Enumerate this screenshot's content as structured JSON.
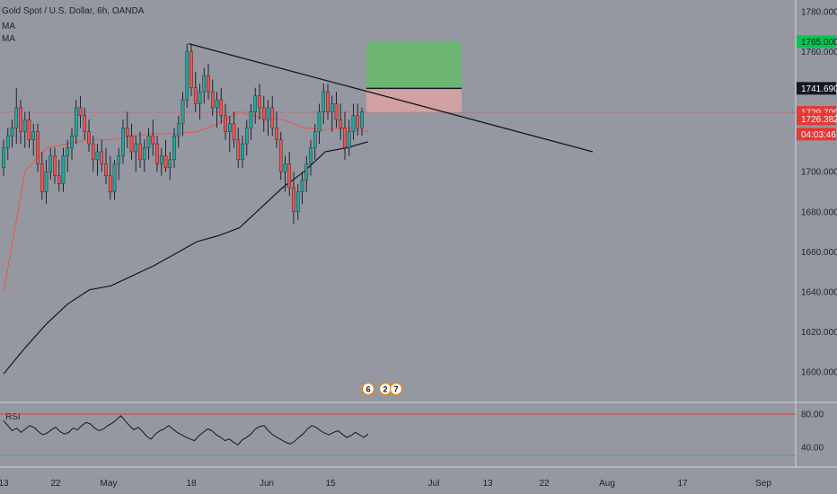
{
  "legend": {
    "title": "Gold Spot / U.S. Dollar, 6h, OANDA",
    "ma_labels": [
      "MA",
      "MA"
    ]
  },
  "price_axis": {
    "ticks": [
      "1780.000",
      "1760.000",
      "1700.000",
      "1680.000",
      "1660.000",
      "1640.000",
      "1620.000",
      "1600.000"
    ],
    "badges": [
      {
        "text": "1765.000",
        "price": 1765.0,
        "bg": "#00c853",
        "fg": "#131722"
      },
      {
        "text": "1741.690",
        "price": 1741.69,
        "bg": "#131722",
        "fg": "#ffffff"
      },
      {
        "text": "1729.700",
        "price": 1729.7,
        "bg": "#e53935",
        "fg": "#ffffff"
      },
      {
        "text": "1726.382",
        "price": 1726.382,
        "bg": "#e53935",
        "fg": "#ffffff"
      },
      {
        "text": "04:03:46",
        "price": 1718.8,
        "bg": "#e53935",
        "fg": "#ffffff"
      }
    ]
  },
  "rsi_panel": {
    "label": "RSI",
    "ticks": [
      "80.00",
      "40.00"
    ]
  },
  "time_axis": {
    "ticks": [
      "13",
      "22",
      "May",
      "18",
      "Jun",
      "15",
      "Jul",
      "13",
      "22",
      "Aug",
      "17",
      "Sep"
    ]
  },
  "event_badges": [
    "6",
    "2",
    "7"
  ],
  "colors": {
    "background": "#9598a1",
    "bull_candle": "#26a69a",
    "bear_candle": "#ef5350",
    "wick": "#1e222d",
    "ma_fast": "#ef5350",
    "ma_slow": "#131722",
    "trendline": "#131722",
    "target_zone": "#66bb6a",
    "stop_zone": "#d8a3a3",
    "last_price_line": "#e53935",
    "rsi_line": "#131722",
    "rsi_upper": "#e53935",
    "rsi_lower": "#4caf50"
  },
  "chart_data": {
    "type": "candlestick",
    "symbol": "Gold Spot / U.S. Dollar",
    "timeframe": "6h",
    "price_ylim": [
      1590,
      1785
    ],
    "last_price": 1729.7,
    "candles_ohlc": [
      [
        1702,
        1716,
        1698,
        1712
      ],
      [
        1712,
        1722,
        1706,
        1718
      ],
      [
        1718,
        1726,
        1712,
        1722
      ],
      [
        1722,
        1742,
        1714,
        1732
      ],
      [
        1732,
        1736,
        1714,
        1720
      ],
      [
        1720,
        1730,
        1712,
        1726
      ],
      [
        1726,
        1730,
        1712,
        1716
      ],
      [
        1716,
        1724,
        1708,
        1720
      ],
      [
        1720,
        1724,
        1700,
        1704
      ],
      [
        1704,
        1710,
        1686,
        1690
      ],
      [
        1690,
        1706,
        1684,
        1700
      ],
      [
        1700,
        1712,
        1696,
        1708
      ],
      [
        1708,
        1712,
        1694,
        1698
      ],
      [
        1698,
        1706,
        1690,
        1694
      ],
      [
        1694,
        1712,
        1690,
        1708
      ],
      [
        1708,
        1716,
        1700,
        1712
      ],
      [
        1712,
        1722,
        1706,
        1718
      ],
      [
        1718,
        1736,
        1714,
        1732
      ],
      [
        1732,
        1738,
        1722,
        1728
      ],
      [
        1728,
        1732,
        1716,
        1720
      ],
      [
        1720,
        1726,
        1710,
        1714
      ],
      [
        1714,
        1718,
        1700,
        1706
      ],
      [
        1706,
        1714,
        1698,
        1710
      ],
      [
        1710,
        1716,
        1700,
        1704
      ],
      [
        1704,
        1712,
        1694,
        1698
      ],
      [
        1698,
        1708,
        1686,
        1690
      ],
      [
        1690,
        1706,
        1686,
        1704
      ],
      [
        1704,
        1712,
        1696,
        1708
      ],
      [
        1708,
        1726,
        1704,
        1722
      ],
      [
        1722,
        1730,
        1712,
        1718
      ],
      [
        1718,
        1724,
        1706,
        1710
      ],
      [
        1710,
        1718,
        1700,
        1714
      ],
      [
        1714,
        1720,
        1702,
        1706
      ],
      [
        1706,
        1716,
        1700,
        1712
      ],
      [
        1712,
        1722,
        1706,
        1718
      ],
      [
        1718,
        1726,
        1708,
        1714
      ],
      [
        1714,
        1718,
        1700,
        1704
      ],
      [
        1704,
        1712,
        1698,
        1708
      ],
      [
        1708,
        1716,
        1700,
        1702
      ],
      [
        1702,
        1710,
        1696,
        1706
      ],
      [
        1706,
        1722,
        1702,
        1718
      ],
      [
        1718,
        1728,
        1712,
        1724
      ],
      [
        1724,
        1740,
        1718,
        1736
      ],
      [
        1736,
        1764,
        1732,
        1760
      ],
      [
        1760,
        1764,
        1738,
        1742
      ],
      [
        1742,
        1750,
        1730,
        1734
      ],
      [
        1734,
        1744,
        1726,
        1740
      ],
      [
        1740,
        1752,
        1734,
        1748
      ],
      [
        1748,
        1754,
        1736,
        1740
      ],
      [
        1740,
        1746,
        1728,
        1732
      ],
      [
        1732,
        1740,
        1722,
        1736
      ],
      [
        1736,
        1742,
        1724,
        1728
      ],
      [
        1728,
        1734,
        1716,
        1720
      ],
      [
        1720,
        1728,
        1710,
        1724
      ],
      [
        1724,
        1730,
        1712,
        1716
      ],
      [
        1716,
        1722,
        1702,
        1706
      ],
      [
        1706,
        1718,
        1702,
        1714
      ],
      [
        1714,
        1726,
        1708,
        1722
      ],
      [
        1722,
        1734,
        1716,
        1730
      ],
      [
        1730,
        1742,
        1724,
        1738
      ],
      [
        1738,
        1744,
        1726,
        1732
      ],
      [
        1732,
        1738,
        1720,
        1726
      ],
      [
        1726,
        1736,
        1718,
        1732
      ],
      [
        1732,
        1738,
        1718,
        1722
      ],
      [
        1722,
        1730,
        1712,
        1716
      ],
      [
        1716,
        1720,
        1696,
        1700
      ],
      [
        1700,
        1708,
        1690,
        1704
      ],
      [
        1704,
        1710,
        1688,
        1692
      ],
      [
        1692,
        1700,
        1674,
        1680
      ],
      [
        1680,
        1694,
        1676,
        1690
      ],
      [
        1690,
        1700,
        1684,
        1696
      ],
      [
        1696,
        1708,
        1690,
        1704
      ],
      [
        1704,
        1716,
        1698,
        1712
      ],
      [
        1712,
        1724,
        1706,
        1720
      ],
      [
        1720,
        1734,
        1714,
        1730
      ],
      [
        1730,
        1744,
        1724,
        1740
      ],
      [
        1740,
        1744,
        1726,
        1730
      ],
      [
        1730,
        1738,
        1720,
        1734
      ],
      [
        1734,
        1740,
        1722,
        1726
      ],
      [
        1726,
        1734,
        1716,
        1722
      ],
      [
        1722,
        1730,
        1706,
        1712
      ],
      [
        1712,
        1726,
        1708,
        1720
      ],
      [
        1720,
        1734,
        1716,
        1728
      ],
      [
        1728,
        1734,
        1718,
        1722
      ],
      [
        1722,
        1732,
        1718,
        1730
      ]
    ],
    "ma_fast": [
      1640,
      1700,
      1712,
      1714,
      1716,
      1716,
      1718,
      1719,
      1719,
      1720,
      1724,
      1730,
      1727,
      1726,
      1722,
      1721,
      1722,
      1720
    ],
    "ma_slow": [
      1599,
      1612,
      1624,
      1634,
      1641,
      1643,
      1648,
      1653,
      1659,
      1665,
      1668,
      1672,
      1682,
      1692,
      1700,
      1710,
      1712,
      1715
    ],
    "trendline": {
      "start": {
        "x": "May 18",
        "price": 1764
      },
      "end": {
        "x": "Jul 29",
        "price": 1710
      }
    },
    "position": {
      "entry": 1729.7,
      "target": 1765.0,
      "stop": 1741.69
    },
    "rsi_ylim": [
      15,
      95
    ],
    "rsi_levels": [
      80,
      30
    ],
    "rsi": [
      72,
      66,
      60,
      63,
      58,
      62,
      66,
      64,
      59,
      55,
      57,
      61,
      64,
      59,
      56,
      58,
      63,
      61,
      66,
      70,
      68,
      63,
      60,
      62,
      66,
      69,
      73,
      78,
      72,
      66,
      61,
      64,
      59,
      53,
      50,
      56,
      60,
      62,
      66,
      62,
      58,
      55,
      52,
      50,
      48,
      54,
      58,
      62,
      60,
      55,
      52,
      48,
      50,
      46,
      43,
      49,
      52,
      56,
      62,
      65,
      66,
      60,
      55,
      52,
      49,
      46,
      44,
      47,
      52,
      56,
      62,
      66,
      64,
      60,
      57,
      55,
      58,
      60,
      56,
      52,
      54,
      58,
      55,
      52,
      56
    ]
  }
}
